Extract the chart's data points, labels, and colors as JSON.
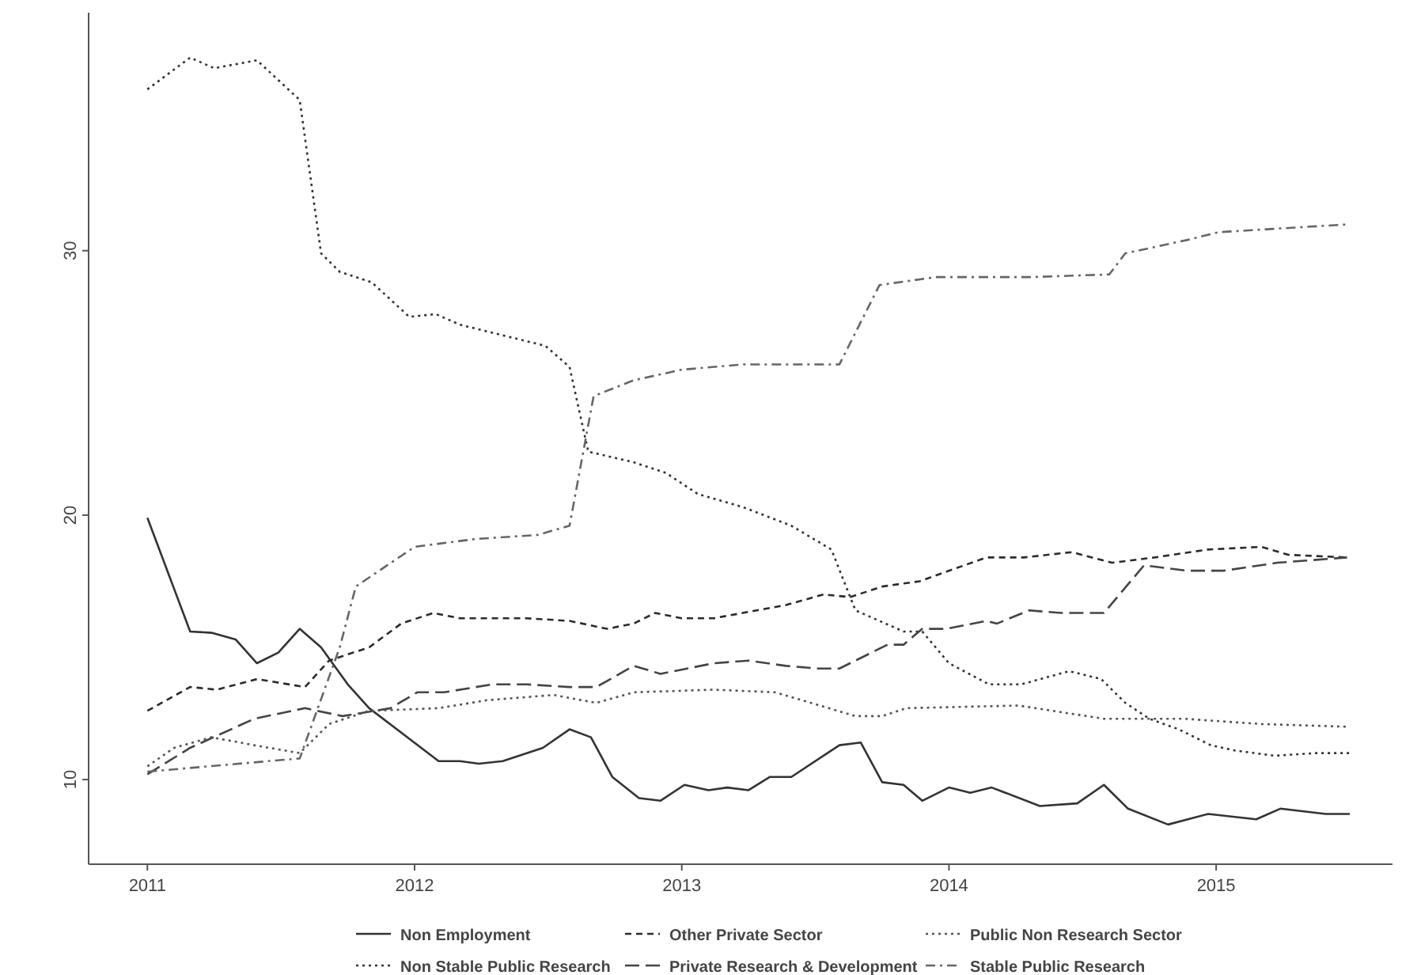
{
  "chart_data": {
    "type": "line",
    "xlim": [
      2010.78,
      2015.66
    ],
    "xticks": [
      2011,
      2012,
      2013,
      2014,
      2015
    ],
    "ylim": [
      6.8,
      39
    ],
    "yticks": [
      10,
      20,
      30
    ],
    "grid": false,
    "legend": "bottom",
    "marker": "none",
    "series": [
      {
        "name": "Non Employment",
        "color": "#333333",
        "line_style": "solid",
        "x": [
          2011.0,
          2011.16,
          2011.24,
          2011.33,
          2011.41,
          2011.49,
          2011.57,
          2011.65,
          2011.75,
          2011.83,
          2012.09,
          2012.17,
          2012.24,
          2012.33,
          2012.48,
          2012.58,
          2012.66,
          2012.74,
          2012.84,
          2012.92,
          2013.01,
          2013.1,
          2013.17,
          2013.25,
          2013.33,
          2013.41,
          2013.59,
          2013.67,
          2013.75,
          2013.83,
          2013.9,
          2014.0,
          2014.08,
          2014.16,
          2014.34,
          2014.48,
          2014.58,
          2014.67,
          2014.82,
          2014.97,
          2015.15,
          2015.24,
          2015.41,
          2015.5
        ],
        "values": [
          19.9,
          15.6,
          15.55,
          15.3,
          14.4,
          14.8,
          15.7,
          15.0,
          13.6,
          12.7,
          10.7,
          10.7,
          10.6,
          10.7,
          11.2,
          11.9,
          11.6,
          10.1,
          9.3,
          9.2,
          9.8,
          9.6,
          9.7,
          9.6,
          10.1,
          10.1,
          11.3,
          11.4,
          9.9,
          9.8,
          9.2,
          9.7,
          9.5,
          9.7,
          9.0,
          9.1,
          9.8,
          8.9,
          8.3,
          8.7,
          8.5,
          8.9,
          8.7,
          8.7
        ]
      },
      {
        "name": "Non Stable Public Research",
        "color": "#333333",
        "line_style": "dotted",
        "x": [
          2011.0,
          2011.16,
          2011.25,
          2011.41,
          2011.57,
          2011.65,
          2011.72,
          2011.84,
          2011.98,
          2012.08,
          2012.17,
          2012.49,
          2012.58,
          2012.65,
          2012.82,
          2012.94,
          2013.06,
          2013.23,
          2013.41,
          2013.56,
          2013.65,
          2013.83,
          2013.9,
          2014.0,
          2014.15,
          2014.27,
          2014.45,
          2014.57,
          2014.66,
          2014.75,
          2014.86,
          2014.98,
          2015.07,
          2015.22,
          2015.37,
          2015.5
        ],
        "values": [
          36.1,
          37.3,
          36.9,
          37.2,
          35.7,
          29.9,
          29.2,
          28.8,
          27.5,
          27.6,
          27.2,
          26.4,
          25.6,
          22.4,
          22.0,
          21.6,
          20.8,
          20.3,
          19.6,
          18.7,
          16.4,
          15.6,
          15.6,
          14.4,
          13.6,
          13.6,
          14.1,
          13.8,
          12.9,
          12.3,
          11.9,
          11.3,
          11.1,
          10.9,
          11.0,
          11.0
        ]
      },
      {
        "name": "Other Private Sector",
        "color": "#2b2b2b",
        "line_style": "dashed",
        "x": [
          2011.0,
          2011.16,
          2011.26,
          2011.41,
          2011.59,
          2011.68,
          2011.83,
          2011.95,
          2012.07,
          2012.17,
          2012.42,
          2012.58,
          2012.72,
          2012.82,
          2012.9,
          2013.0,
          2013.12,
          2013.39,
          2013.53,
          2013.63,
          2013.75,
          2013.89,
          2014.14,
          2014.28,
          2014.46,
          2014.61,
          2014.77,
          2014.97,
          2015.17,
          2015.27,
          2015.49
        ],
        "values": [
          12.6,
          13.5,
          13.4,
          13.8,
          13.5,
          14.5,
          15.0,
          15.9,
          16.3,
          16.1,
          16.1,
          16.0,
          15.7,
          15.9,
          16.3,
          16.1,
          16.1,
          16.6,
          17.0,
          16.9,
          17.3,
          17.5,
          18.4,
          18.4,
          18.6,
          18.2,
          18.4,
          18.7,
          18.8,
          18.5,
          18.4
        ]
      },
      {
        "name": "Private Research & Development",
        "color": "#444444",
        "line_style": "longdash",
        "x": [
          2011.0,
          2011.16,
          2011.4,
          2011.59,
          2011.73,
          2011.91,
          2012.01,
          2012.11,
          2012.29,
          2012.42,
          2012.58,
          2012.68,
          2012.82,
          2012.92,
          2013.12,
          2013.25,
          2013.39,
          2013.51,
          2013.59,
          2013.77,
          2013.83,
          2013.9,
          2013.99,
          2014.14,
          2014.18,
          2014.3,
          2014.42,
          2014.58,
          2014.73,
          2014.89,
          2015.03,
          2015.23,
          2015.49
        ],
        "values": [
          10.2,
          11.2,
          12.3,
          12.7,
          12.4,
          12.7,
          13.3,
          13.3,
          13.6,
          13.6,
          13.5,
          13.5,
          14.3,
          14.0,
          14.4,
          14.5,
          14.3,
          14.2,
          14.2,
          15.1,
          15.1,
          15.7,
          15.7,
          16.0,
          15.9,
          16.4,
          16.3,
          16.3,
          18.1,
          17.9,
          17.9,
          18.2,
          18.4
        ]
      },
      {
        "name": "Public Non Research Sector",
        "color": "#555555",
        "line_style": "dotted",
        "x": [
          2011.0,
          2011.1,
          2011.24,
          2011.4,
          2011.57,
          2011.68,
          2011.83,
          2012.09,
          2012.27,
          2012.52,
          2012.68,
          2012.82,
          2013.12,
          2013.35,
          2013.65,
          2013.75,
          2013.84,
          2014.26,
          2014.58,
          2014.88,
          2015.17,
          2015.49
        ],
        "values": [
          10.5,
          11.2,
          11.6,
          11.3,
          11.0,
          12.1,
          12.6,
          12.7,
          13.0,
          13.2,
          12.9,
          13.3,
          13.4,
          13.3,
          12.4,
          12.4,
          12.7,
          12.8,
          12.3,
          12.3,
          12.1,
          12.0
        ]
      },
      {
        "name": "Stable Public Research",
        "color": "#666666",
        "line_style": "dashdot",
        "x": [
          2011.0,
          2011.57,
          2011.72,
          2011.78,
          2012.0,
          2012.23,
          2012.46,
          2012.58,
          2012.67,
          2012.82,
          2013.0,
          2013.23,
          2013.59,
          2013.74,
          2013.95,
          2014.3,
          2014.6,
          2014.66,
          2014.89,
          2015.01,
          2015.5
        ],
        "values": [
          10.3,
          10.8,
          15.0,
          17.3,
          18.8,
          19.1,
          19.25,
          19.6,
          24.5,
          25.1,
          25.5,
          25.7,
          25.7,
          28.7,
          29.0,
          29.0,
          29.1,
          29.9,
          30.4,
          30.7,
          31.0
        ]
      }
    ]
  }
}
